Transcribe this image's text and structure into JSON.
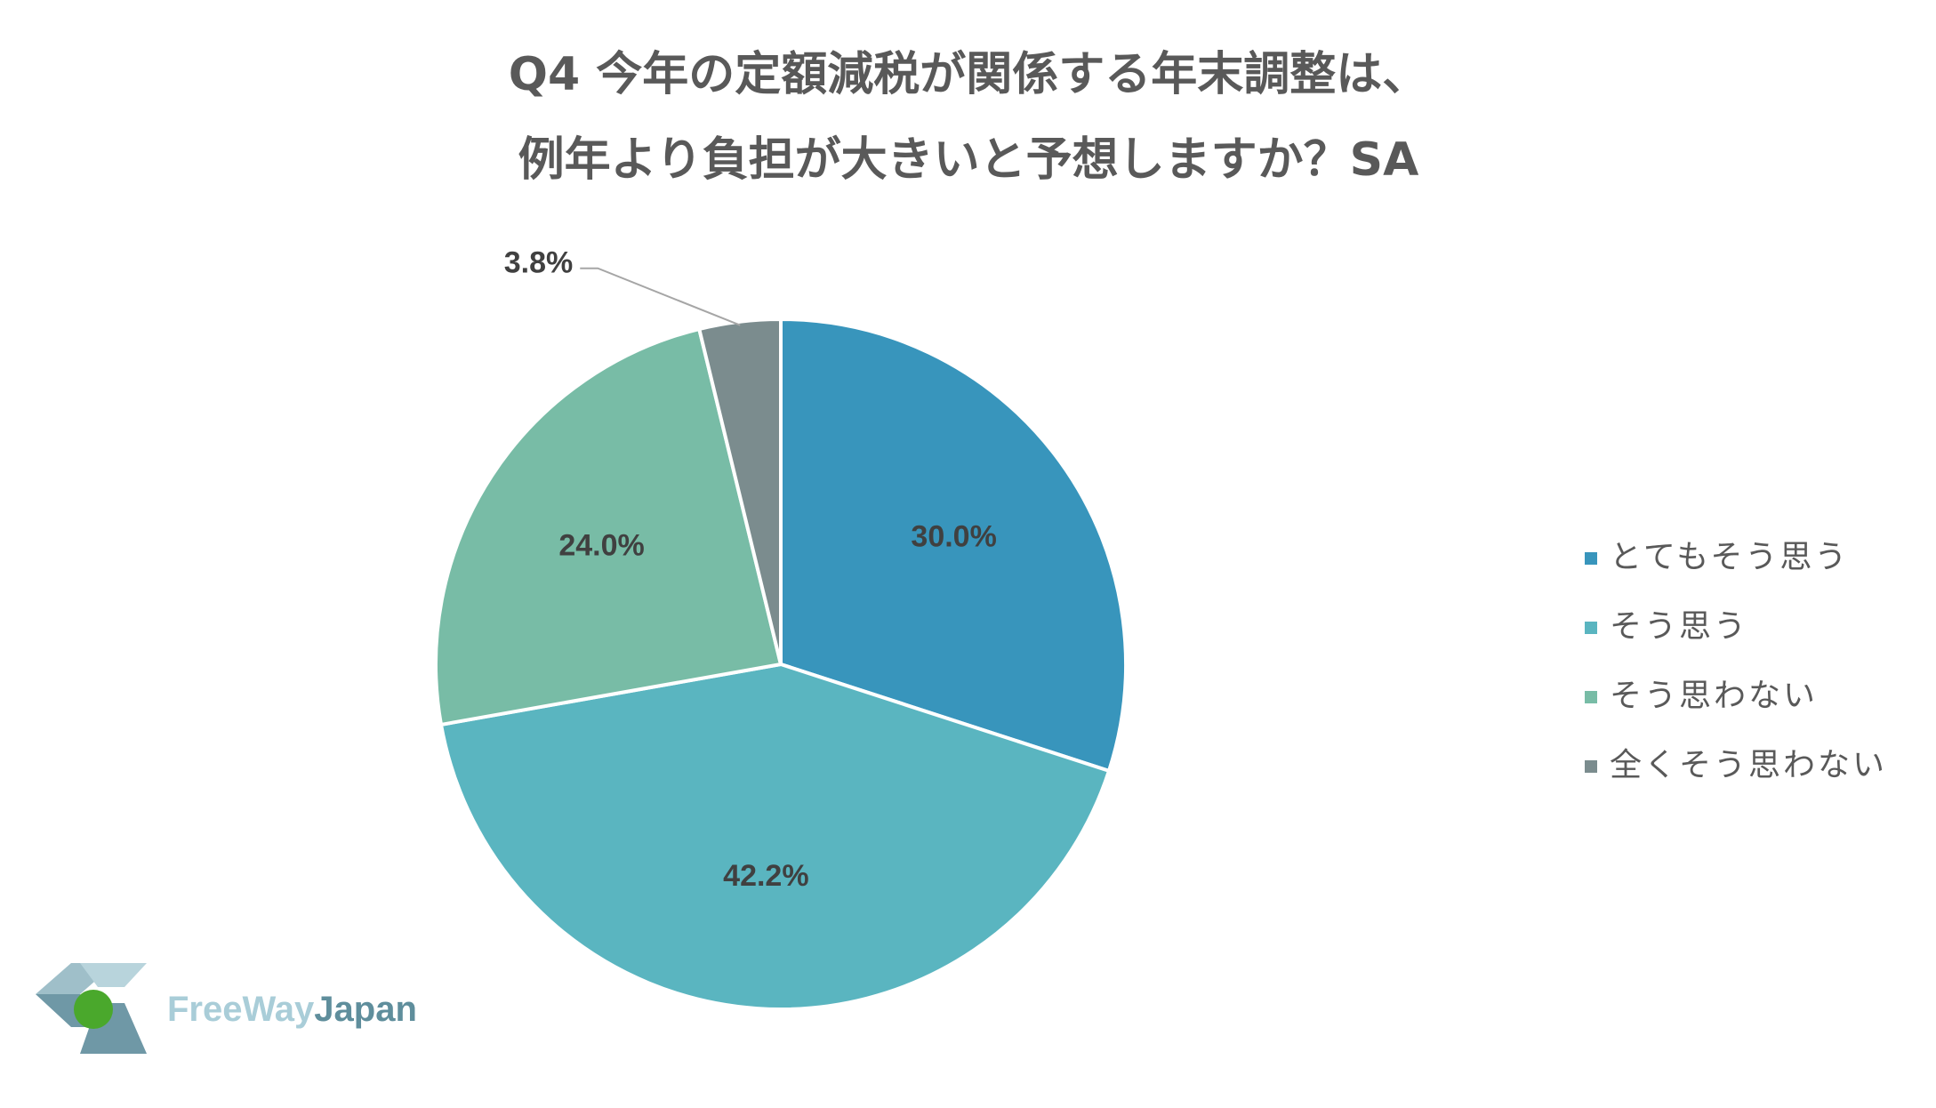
{
  "chart_data": {
    "type": "pie",
    "title": [
      "Q4 今年の定額減税が関係する年末調整は、",
      "例年より負担が大きいと予想しますか？SA"
    ],
    "categories": [
      "とてもそう思う",
      "そう思う",
      "そう思わない",
      "全くそう思わない"
    ],
    "values": [
      30.0,
      42.2,
      24.0,
      3.8
    ],
    "value_labels": [
      "30.0%",
      "42.2%",
      "24.0%",
      "3.8%"
    ],
    "colors": [
      "#3895bc",
      "#5ab5c0",
      "#78bca6",
      "#7b8c8e"
    ],
    "legend": "right"
  },
  "logo": {
    "text_light": "FreeWay",
    "text_dark": "Japan"
  }
}
